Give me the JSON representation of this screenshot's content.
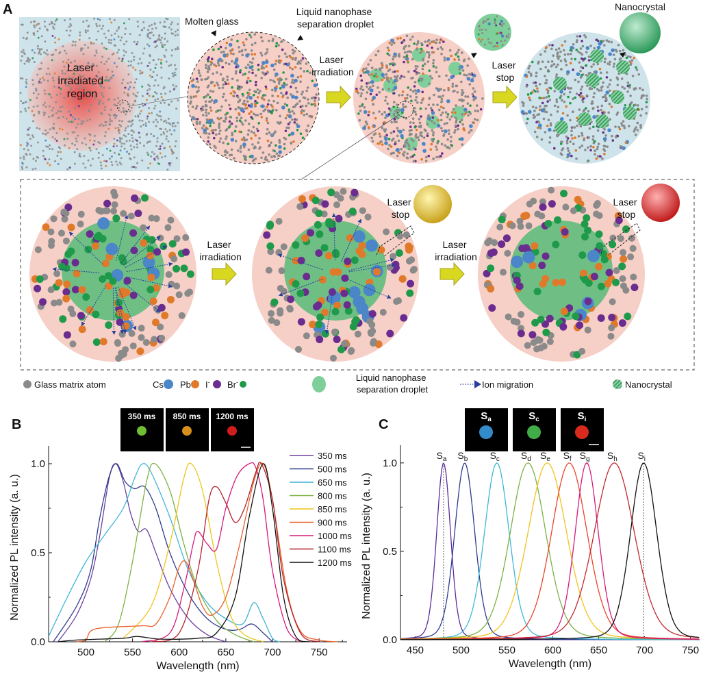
{
  "panels": {
    "a": "A",
    "b": "B",
    "c": "C"
  },
  "diagram": {
    "laser_irradiated_region": [
      "Laser",
      "irradiated",
      "region"
    ],
    "molten_glass": "Molten glass",
    "droplet_label": [
      "Liquid nanophase",
      "separation droplet"
    ],
    "laser_irradiation": [
      "Laser",
      "irradiation"
    ],
    "laser_stop": [
      "Laser",
      "stop"
    ],
    "nanocrystal": "Nanocrystal",
    "bottom_laser_irradiation_1": [
      "Laser",
      "irradiation"
    ],
    "bottom_laser_irradiation_2": [
      "Laser",
      "irradiation"
    ],
    "inset_laser_stop_1": [
      "Laser",
      "stop"
    ],
    "inset_laser_stop_2": [
      "Laser",
      "stop"
    ]
  },
  "legend": {
    "glass_matrix_atom": "Glass matrix atom",
    "cs": "Cs",
    "pb": "Pb",
    "i": "I",
    "br": "Br",
    "minus": "-",
    "droplet": [
      "Liquid nanophase",
      "separation droplet"
    ],
    "ion_migration": "Ion migration",
    "nanocrystal": "Nanocrystal"
  },
  "colors": {
    "glass": "#8a8a8a",
    "cs": "#4a86c8",
    "pb": "#e07a2a",
    "i": "#6a2d8f",
    "br": "#1f9a4a",
    "droplet": "#7fcf9a",
    "pink": "#f6cfc6",
    "lightblue": "#cfe3ea",
    "arrow": "#d8d820"
  },
  "chart_data": [
    {
      "type": "line",
      "panel": "B",
      "xlabel": "Wavelength (nm)",
      "ylabel": "Normalized PL intensity (a. u.)",
      "xlim": [
        460,
        780
      ],
      "ylim": [
        0,
        1.1
      ],
      "xticks": [
        500,
        550,
        600,
        650,
        700,
        750
      ],
      "yticks": [
        "0.0",
        "0.5",
        "1.0"
      ],
      "yticks_values": [
        0,
        0.5,
        1.0
      ],
      "legend_position": "right",
      "insets": [
        "350 ms",
        "850 ms",
        "1200 ms"
      ],
      "series": [
        {
          "name": "350 ms",
          "color": "#6b3fa0",
          "points": [
            [
              470,
              0
            ],
            [
              490,
              0.15
            ],
            [
              505,
              0.35
            ],
            [
              515,
              0.6
            ],
            [
              525,
              0.92
            ],
            [
              532,
              1.0
            ],
            [
              540,
              0.9
            ],
            [
              548,
              0.72
            ],
            [
              556,
              0.62
            ],
            [
              565,
              0.63
            ],
            [
              575,
              0.5
            ],
            [
              590,
              0.3
            ],
            [
              610,
              0.13
            ],
            [
              630,
              0.04
            ],
            [
              650,
              0
            ]
          ]
        },
        {
          "name": "500 ms",
          "color": "#2e3a8c",
          "points": [
            [
              465,
              0
            ],
            [
              490,
              0.2
            ],
            [
              505,
              0.4
            ],
            [
              515,
              0.7
            ],
            [
              525,
              0.93
            ],
            [
              533,
              1.0
            ],
            [
              542,
              0.9
            ],
            [
              552,
              0.86
            ],
            [
              563,
              0.87
            ],
            [
              575,
              0.75
            ],
            [
              590,
              0.5
            ],
            [
              610,
              0.27
            ],
            [
              630,
              0.13
            ],
            [
              650,
              0.07
            ],
            [
              665,
              0.07
            ],
            [
              678,
              0.1
            ],
            [
              690,
              0.05
            ],
            [
              700,
              0
            ]
          ]
        },
        {
          "name": "650 ms",
          "color": "#40b4d6",
          "points": [
            [
              460,
              0.03
            ],
            [
              480,
              0.25
            ],
            [
              500,
              0.45
            ],
            [
              520,
              0.6
            ],
            [
              540,
              0.75
            ],
            [
              553,
              0.93
            ],
            [
              561,
              1.0
            ],
            [
              570,
              0.95
            ],
            [
              590,
              0.7
            ],
            [
              610,
              0.4
            ],
            [
              630,
              0.22
            ],
            [
              650,
              0.13
            ],
            [
              668,
              0.1
            ],
            [
              680,
              0.22
            ],
            [
              690,
              0.13
            ],
            [
              700,
              0.02
            ],
            [
              708,
              0
            ]
          ]
        },
        {
          "name": "800 ms",
          "color": "#7ab342",
          "points": [
            [
              520,
              0
            ],
            [
              535,
              0.1
            ],
            [
              550,
              0.45
            ],
            [
              565,
              0.9
            ],
            [
              574,
              1.0
            ],
            [
              590,
              0.85
            ],
            [
              605,
              0.55
            ],
            [
              620,
              0.3
            ],
            [
              640,
              0.12
            ],
            [
              660,
              0.04
            ],
            [
              680,
              0
            ]
          ]
        },
        {
          "name": "850 ms",
          "color": "#f0c419",
          "points": [
            [
              540,
              0.02
            ],
            [
              570,
              0.2
            ],
            [
              590,
              0.55
            ],
            [
              605,
              0.92
            ],
            [
              613,
              1.0
            ],
            [
              625,
              0.85
            ],
            [
              640,
              0.45
            ],
            [
              655,
              0.15
            ],
            [
              670,
              0.04
            ],
            [
              690,
              0
            ]
          ]
        },
        {
          "name": "900 ms",
          "color": "#e8602a",
          "points": [
            [
              490,
              0
            ],
            [
              500,
              0.01
            ],
            [
              505,
              0.06
            ],
            [
              520,
              0.08
            ],
            [
              560,
              0.09
            ],
            [
              575,
              0.1
            ],
            [
              590,
              0.25
            ],
            [
              600,
              0.42
            ],
            [
              607,
              0.45
            ],
            [
              615,
              0.35
            ],
            [
              625,
              0.2
            ],
            [
              635,
              0.15
            ],
            [
              650,
              0.25
            ],
            [
              665,
              0.55
            ],
            [
              680,
              0.9
            ],
            [
              690,
              1.0
            ],
            [
              700,
              0.8
            ],
            [
              715,
              0.3
            ],
            [
              730,
              0.06
            ],
            [
              750,
              0.01
            ],
            [
              770,
              0
            ]
          ]
        },
        {
          "name": "1000 ms",
          "color": "#d6197a",
          "points": [
            [
              560,
              0
            ],
            [
              590,
              0.05
            ],
            [
              605,
              0.3
            ],
            [
              615,
              0.55
            ],
            [
              620,
              0.62
            ],
            [
              630,
              0.55
            ],
            [
              640,
              0.52
            ],
            [
              650,
              0.75
            ],
            [
              662,
              0.93
            ],
            [
              675,
              1.0
            ],
            [
              682,
              0.98
            ],
            [
              690,
              0.8
            ],
            [
              700,
              0.4
            ],
            [
              715,
              0.08
            ],
            [
              730,
              0
            ]
          ]
        },
        {
          "name": "1100 ms",
          "color": "#b5222b",
          "points": [
            [
              570,
              0
            ],
            [
              600,
              0.05
            ],
            [
              620,
              0.4
            ],
            [
              632,
              0.8
            ],
            [
              640,
              0.87
            ],
            [
              650,
              0.78
            ],
            [
              660,
              0.67
            ],
            [
              670,
              0.75
            ],
            [
              682,
              0.95
            ],
            [
              688,
              1.0
            ],
            [
              700,
              0.8
            ],
            [
              712,
              0.35
            ],
            [
              730,
              0.05
            ],
            [
              750,
              0
            ]
          ]
        },
        {
          "name": "1200 ms",
          "color": "#111111",
          "points": [
            [
              470,
              0
            ],
            [
              490,
              0.01
            ],
            [
              540,
              0.02
            ],
            [
              555,
              0.03
            ],
            [
              580,
              0.015
            ],
            [
              620,
              0.02
            ],
            [
              640,
              0.05
            ],
            [
              660,
              0.25
            ],
            [
              675,
              0.7
            ],
            [
              690,
              1.0
            ],
            [
              700,
              0.75
            ],
            [
              712,
              0.25
            ],
            [
              725,
              0.03
            ],
            [
              740,
              0
            ]
          ]
        }
      ]
    },
    {
      "type": "line",
      "panel": "C",
      "xlabel": "Wavelength (nm)",
      "ylabel": "Normalized PL intensity (a. u.)",
      "xlim": [
        434,
        760
      ],
      "ylim": [
        0,
        1.1
      ],
      "xticks": [
        450,
        500,
        550,
        600,
        650,
        700,
        750
      ],
      "yticks": [
        "0.0",
        "0.5",
        "1.0"
      ],
      "yticks_values": [
        0,
        0.5,
        1.0
      ],
      "insets": [
        {
          "base": "S",
          "sub": "a"
        },
        {
          "base": "S",
          "sub": "c"
        },
        {
          "base": "S",
          "sub": "i"
        }
      ],
      "dashed_markers_nm": [
        481,
        699
      ],
      "series": [
        {
          "base": "S",
          "sub": "a",
          "peak_nm": 481,
          "fwhm_nm": 18,
          "color": "#5b2a9a"
        },
        {
          "base": "S",
          "sub": "b",
          "peak_nm": 504,
          "fwhm_nm": 26,
          "color": "#2b3a8f"
        },
        {
          "base": "S",
          "sub": "c",
          "peak_nm": 539,
          "fwhm_nm": 32,
          "color": "#3bb7d8"
        },
        {
          "base": "S",
          "sub": "d",
          "peak_nm": 573,
          "fwhm_nm": 46,
          "color": "#7ab342"
        },
        {
          "base": "S",
          "sub": "e",
          "peak_nm": 594,
          "fwhm_nm": 50,
          "color": "#f2c21b"
        },
        {
          "base": "S",
          "sub": "f",
          "peak_nm": 618,
          "fwhm_nm": 46,
          "color": "#e8432a"
        },
        {
          "base": "S",
          "sub": "g",
          "peak_nm": 637,
          "fwhm_nm": 30,
          "color": "#d6197a"
        },
        {
          "base": "S",
          "sub": "h",
          "peak_nm": 667,
          "fwhm_nm": 52,
          "color": "#c1272d"
        },
        {
          "base": "S",
          "sub": "i",
          "peak_nm": 699,
          "fwhm_nm": 34,
          "color": "#111111"
        }
      ]
    }
  ]
}
